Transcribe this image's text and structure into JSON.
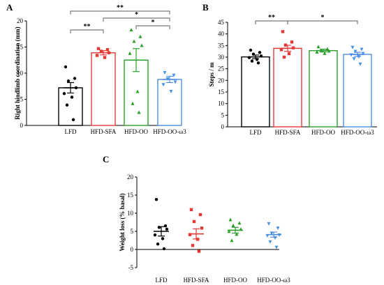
{
  "chart_data": [
    {
      "panel": "A",
      "type": "bar",
      "ylabel": "Right hindlimb coordination (mm)",
      "ylim": [
        0,
        20
      ],
      "yticks": [
        0,
        5,
        10,
        15,
        20
      ],
      "categories": [
        "LFD",
        "HFD-SFA",
        "HFD-OO",
        "HFD-OO-ω3"
      ],
      "values": [
        7.2,
        13.9,
        12.5,
        8.8
      ],
      "sem": [
        1.0,
        0.4,
        2.2,
        0.6
      ],
      "colors": [
        "#000000",
        "#e53935",
        "#2aa02a",
        "#4a90e2"
      ],
      "markers": [
        "circle",
        "square",
        "triangle",
        "triangle-down"
      ],
      "points": [
        [
          11.2,
          9.0,
          8.5,
          7.2,
          6.1,
          5.4,
          3.9,
          1.1
        ],
        [
          14.7,
          14.5,
          14.2,
          13.9,
          13.4,
          13.0
        ],
        [
          18.3,
          17.0,
          16.1,
          15.3,
          13.8,
          6.5,
          4.2,
          2.5
        ],
        [
          10.1,
          9.6,
          8.9,
          8.3,
          7.8,
          6.5
        ]
      ],
      "significance": [
        {
          "from": 0,
          "to": 1,
          "label": "**"
        },
        {
          "from": 0,
          "to": 3,
          "label": "**"
        },
        {
          "from": 1,
          "to": 3,
          "label": "*"
        },
        {
          "from": 2,
          "to": 3,
          "label": "*"
        }
      ]
    },
    {
      "panel": "B",
      "type": "bar",
      "ylabel": "Steps / m",
      "ylim": [
        0,
        45
      ],
      "yticks": [
        0,
        5,
        10,
        15,
        20,
        25,
        30,
        35,
        40,
        45
      ],
      "categories": [
        "LFD",
        "HFD-SFA",
        "HFD-OO",
        "HFD-OO-ω3"
      ],
      "values": [
        30.1,
        33.8,
        32.8,
        31.2
      ],
      "sem": [
        0.8,
        1.3,
        0.6,
        0.9
      ],
      "colors": [
        "#000000",
        "#e53935",
        "#2aa02a",
        "#4a90e2"
      ],
      "markers": [
        "circle",
        "square",
        "triangle",
        "triangle-down"
      ],
      "points": [
        [
          33.0,
          32.0,
          31.3,
          30.5,
          29.8,
          29.0,
          28.3,
          27.5
        ],
        [
          41.0,
          36.5,
          35.2,
          34.0,
          33.2,
          31.5,
          30.0
        ],
        [
          34.5,
          33.5,
          33.0,
          32.6,
          32.2,
          31.6
        ],
        [
          34.2,
          33.4,
          32.5,
          31.6,
          31.0,
          30.2,
          29.3,
          27.0
        ]
      ],
      "significance": [
        {
          "from": 0,
          "to": 1,
          "label": "**"
        },
        {
          "from": 1,
          "to": 3,
          "label": "*"
        }
      ]
    },
    {
      "panel": "C",
      "type": "scatter",
      "ylabel": "Weight loss (% basal)",
      "ylim": [
        -5,
        20
      ],
      "yticks": [
        -5,
        0,
        5,
        10,
        15,
        20
      ],
      "categories": [
        "LFD",
        "HFD-SFA",
        "HFD-OO",
        "HFD-OO-ω3"
      ],
      "values": [
        5.0,
        4.3,
        5.3,
        4.1
      ],
      "sem": [
        1.3,
        1.4,
        0.8,
        0.7
      ],
      "colors": [
        "#000000",
        "#e53935",
        "#2aa02a",
        "#4a90e2"
      ],
      "markers": [
        "circle",
        "square",
        "triangle",
        "triangle-down"
      ],
      "points": [
        [
          13.8,
          6.5,
          6.1,
          5.6,
          4.0,
          3.0,
          1.5,
          0.2
        ],
        [
          11.0,
          9.6,
          7.7,
          5.9,
          4.1,
          2.8,
          1.1,
          -0.5
        ],
        [
          8.2,
          7.3,
          6.6,
          5.6,
          5.0,
          4.2,
          2.5
        ],
        [
          7.1,
          5.9,
          4.5,
          4.0,
          3.8,
          3.2,
          2.1,
          0.6
        ]
      ]
    }
  ]
}
